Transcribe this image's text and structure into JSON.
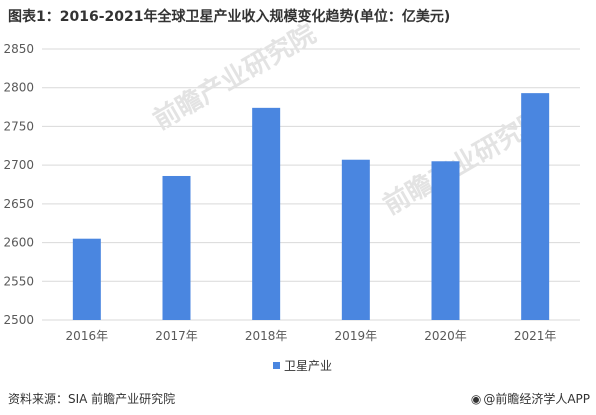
{
  "title": "图表1：2016-2021年全球卫星产业收入规模变化趋势(单位：亿美元)",
  "source": "资料来源：SIA 前瞻产业研究院",
  "credit": {
    "text": "@前瞻经济学人APP",
    "icon": "qianzhan-logo-icon"
  },
  "watermark": "前瞻产业研究院",
  "colors": {
    "bar": "#4a86e0",
    "grid": "#d9d9d9",
    "text": "#595959"
  },
  "chart_data": {
    "type": "bar",
    "title": "",
    "categories": [
      "2016年",
      "2017年",
      "2018年",
      "2019年",
      "2020年",
      "2021年"
    ],
    "series": [
      {
        "name": "卫星产业",
        "values": [
          2605,
          2686,
          2774,
          2707,
          2705,
          2793
        ]
      }
    ],
    "ylim": [
      2500,
      2850
    ],
    "yticks": [
      2500,
      2550,
      2600,
      2650,
      2700,
      2750,
      2800,
      2850
    ],
    "grid": true,
    "legend": "bottom-center",
    "xlabel": "",
    "ylabel": ""
  }
}
